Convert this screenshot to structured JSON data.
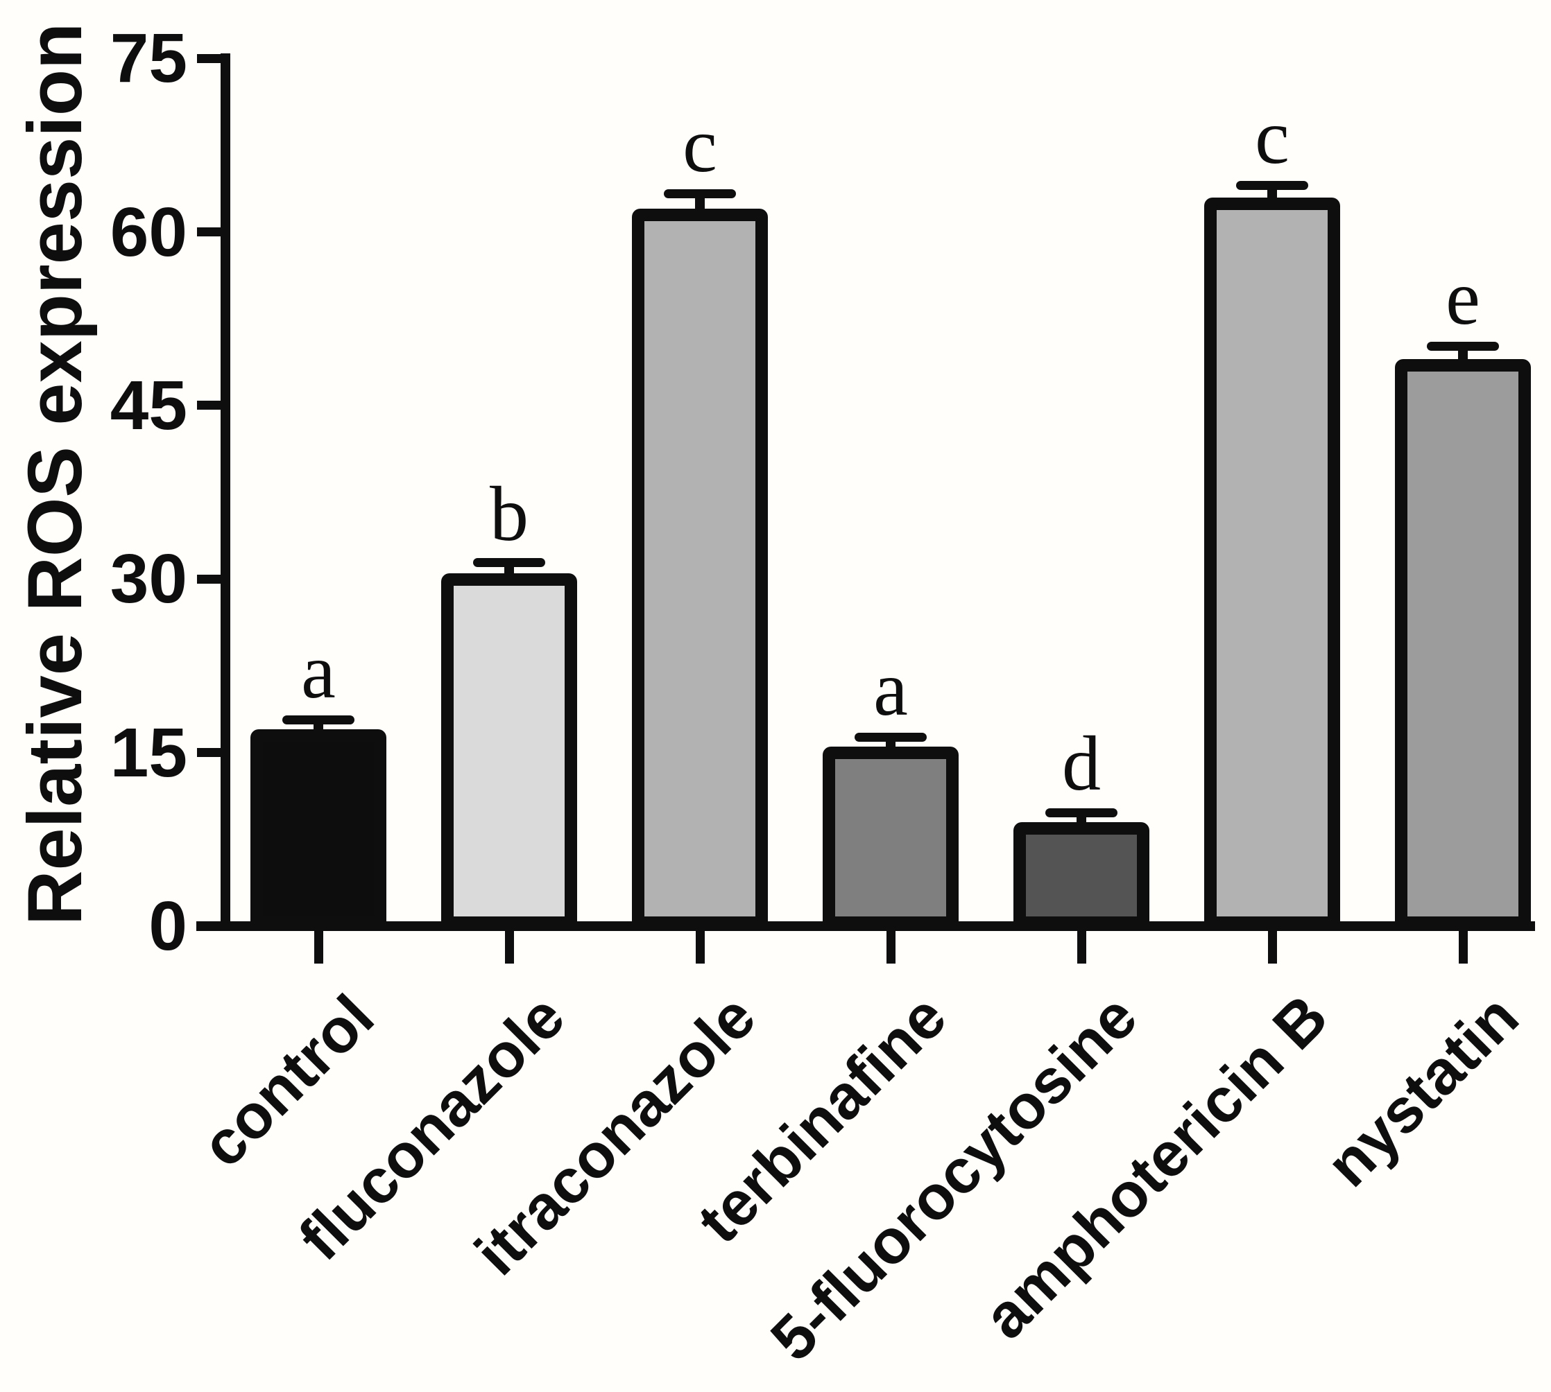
{
  "chart_data": {
    "type": "bar",
    "title": "",
    "ylabel": "Relative ROS expression",
    "xlabel": "",
    "ylim": [
      0,
      75
    ],
    "yticks": [
      0,
      15,
      30,
      45,
      60,
      75
    ],
    "categories": [
      "control",
      "fluconazole",
      "itraconazole",
      "terbinafine",
      "5-fluorocytosine",
      "amphotericin B",
      "nystatin"
    ],
    "values": [
      17,
      30.5,
      62,
      15.5,
      9,
      63,
      49
    ],
    "errors_plus": [
      0.8,
      0.9,
      1.3,
      0.8,
      0.8,
      1.0,
      1.1
    ],
    "error_bars": "upper",
    "significance_letters": [
      "a",
      "b",
      "c",
      "a",
      "d",
      "c",
      "e"
    ],
    "bar_fill_colors": [
      "#0d0d0d",
      "#dadada",
      "#b2b2b2",
      "#7f7f7f",
      "#545454",
      "#b2b2b2",
      "#9c9c9c"
    ],
    "bar_border_color": "#0e0e0e",
    "axis_color": "#0e0e0e",
    "text_color": "#0e0e0e",
    "background_color": "#fffefa",
    "grid": false,
    "legend": null
  }
}
